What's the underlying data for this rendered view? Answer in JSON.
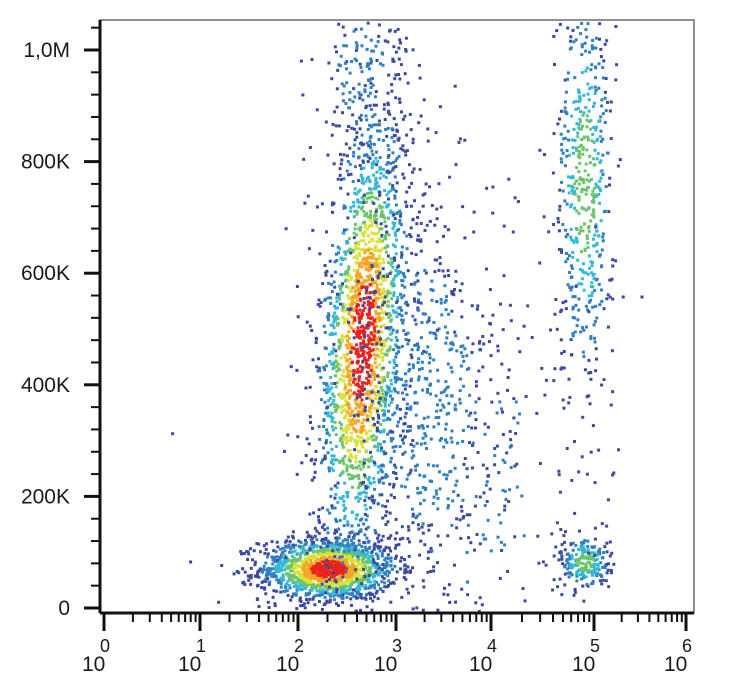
{
  "chart_data": {
    "type": "scatter",
    "style": "density-colored dot plot",
    "title": "",
    "xlabel": "",
    "ylabel": "",
    "x_scale": "log",
    "xlim": [
      1,
      1000000
    ],
    "ylim": [
      0,
      1050000
    ],
    "grid": false,
    "legend": "none",
    "x_tick_labels": [
      {
        "value": 1,
        "base": "10",
        "exp": "0"
      },
      {
        "value": 10,
        "base": "10",
        "exp": "1"
      },
      {
        "value": 100,
        "base": "10",
        "exp": "2"
      },
      {
        "value": 1000,
        "base": "10",
        "exp": "3"
      },
      {
        "value": 10000,
        "base": "10",
        "exp": "4"
      },
      {
        "value": 100000,
        "base": "10",
        "exp": "5"
      },
      {
        "value": 1000000,
        "base": "10",
        "exp": "6"
      }
    ],
    "y_tick_labels": [
      {
        "value": 0,
        "label": "0"
      },
      {
        "value": 200000,
        "label": "200K"
      },
      {
        "value": 400000,
        "label": "400K"
      },
      {
        "value": 600000,
        "label": "600K"
      },
      {
        "value": 800000,
        "label": "800K"
      },
      {
        "value": 1000000,
        "label": "1,0M"
      }
    ],
    "density_colors": [
      "#3b4a9e",
      "#2f7fc1",
      "#33b8d6",
      "#6cc46a",
      "#d8e23a",
      "#f6a623",
      "#e8231c"
    ],
    "populations": [
      {
        "name": "",
        "x_log_center": 2.3,
        "y_center": 72000,
        "x_log_spread": 0.35,
        "y_spread": 28000,
        "approx_points": 1400,
        "peak_density": "high"
      },
      {
        "name": "",
        "x_log_center": 2.65,
        "y_center": 480000,
        "x_log_spread": 0.22,
        "y_spread": 210000,
        "approx_points": 1900,
        "peak_density": "high",
        "tilt": 0.35
      },
      {
        "name": "",
        "x_log_center": 2.65,
        "y_center": 950000,
        "x_log_spread": 0.25,
        "y_spread": 90000,
        "approx_points": 160,
        "peak_density": "low"
      },
      {
        "name": "",
        "x_log_center": 3.3,
        "y_center": 380000,
        "x_log_spread": 0.45,
        "y_spread": 220000,
        "approx_points": 650,
        "peak_density": "low"
      },
      {
        "name": "",
        "x_log_center": 4.9,
        "y_center": 760000,
        "x_log_spread": 0.15,
        "y_spread": 190000,
        "approx_points": 520,
        "peak_density": "medium"
      },
      {
        "name": "",
        "x_log_center": 4.9,
        "y_center": 85000,
        "x_log_spread": 0.13,
        "y_spread": 25000,
        "approx_points": 220,
        "peak_density": "medium"
      },
      {
        "name": "",
        "x_log_center": 3.8,
        "y_center": 250000,
        "x_log_spread": 0.6,
        "y_spread": 200000,
        "approx_points": 160,
        "peak_density": "low"
      }
    ],
    "outliers": [
      {
        "x": 5.0,
        "y": 315000
      },
      {
        "x": 30,
        "y": 60000
      },
      {
        "x": 60,
        "y": 88000
      },
      {
        "x": 200000,
        "y": 560000
      },
      {
        "x": 320000,
        "y": 560000
      }
    ]
  }
}
